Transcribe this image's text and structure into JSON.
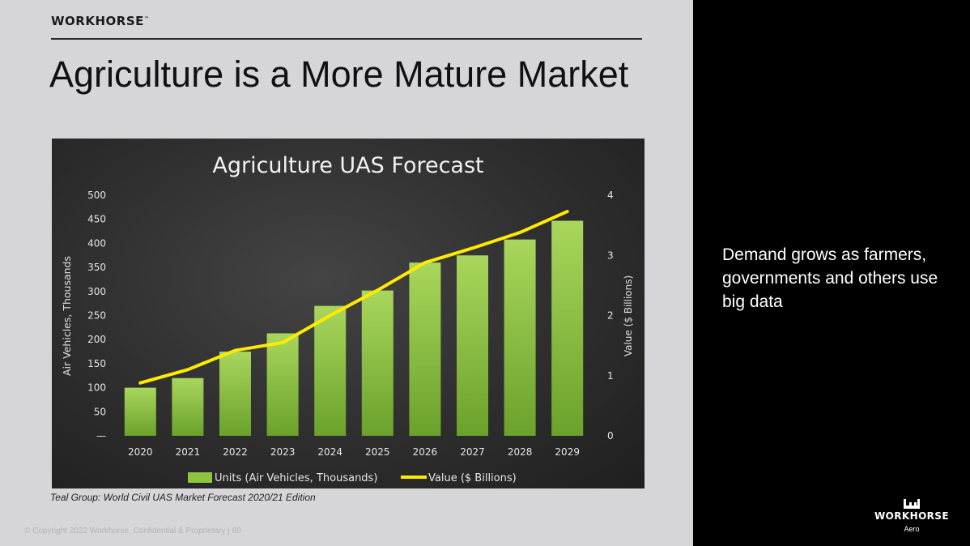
{
  "header": {
    "brand": "WORKHORSE",
    "brand_tm": "™",
    "title": "Agriculture is a More Mature Market"
  },
  "source_note": "Teal Group: World Civil  UAS Market Forecast 2020/21 Edition",
  "footer": {
    "copyright": "© Copyright 2022 Workhorse. Confidential & Proprietary   |   60"
  },
  "side_panel": {
    "text": "Demand grows as farmers, governments and others use big data",
    "logo_text": "WORKHORSE",
    "logo_sub": "Aero"
  },
  "colors": {
    "bar": "#8fc441",
    "line": "#ffeb00",
    "left_bg": "#d6d6d9",
    "right_bg": "#000000"
  },
  "chart_data": {
    "type": "bar",
    "title": "Agriculture UAS Forecast",
    "categories": [
      "2020",
      "2021",
      "2022",
      "2023",
      "2024",
      "2025",
      "2026",
      "2027",
      "2028",
      "2029"
    ],
    "series": [
      {
        "name": "Units (Air Vehicles, Thousands)",
        "type": "bar",
        "axis": "left",
        "values": [
          100,
          120,
          175,
          213,
          270,
          302,
          360,
          375,
          408,
          447
        ]
      },
      {
        "name": "Value ($ Billions)",
        "type": "line",
        "axis": "right",
        "values": [
          0.88,
          1.1,
          1.42,
          1.55,
          2.0,
          2.42,
          2.88,
          3.12,
          3.38,
          3.73
        ]
      }
    ],
    "ylabel": "Air Vehicles, Thousands",
    "y2label": "Value ($ Billions)",
    "ylim": [
      0,
      500
    ],
    "y2lim": [
      0,
      4
    ],
    "y_ticks": [
      "—",
      "50",
      "100",
      "150",
      "200",
      "250",
      "300",
      "350",
      "400",
      "450",
      "500"
    ],
    "y2_ticks": [
      "0",
      "1",
      "2",
      "3",
      "4"
    ],
    "grid": false,
    "legend_position": "bottom"
  }
}
